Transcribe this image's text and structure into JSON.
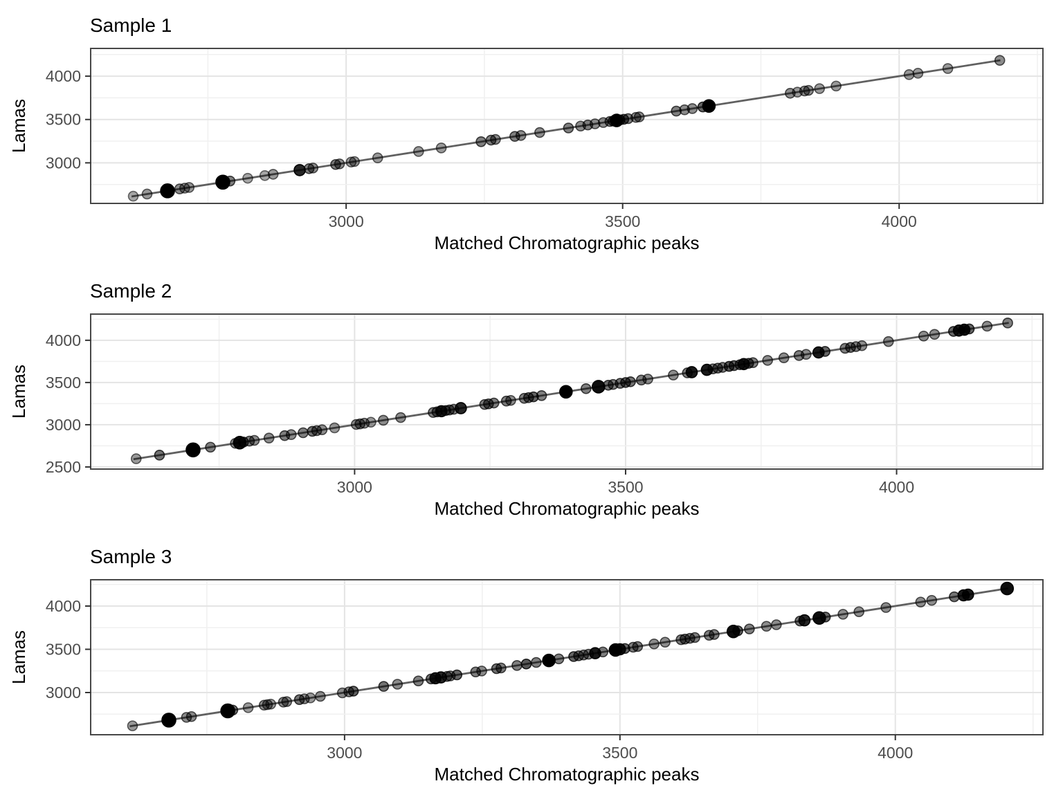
{
  "colors": {
    "background": "#ffffff",
    "panel_background": "#ffffff",
    "panel_border": "#474747",
    "grid_major": "#e4e4e4",
    "grid_minor": "#f0f0f0",
    "tick_mark": "#333333",
    "tick_label": "#4d4d4d",
    "fit_line": "#606060",
    "point": "#000000"
  },
  "chart_data": [
    {
      "type": "scatter",
      "title": "Sample 1",
      "xlabel": "Matched Chromatographic peaks",
      "ylabel": "Lamas",
      "xlim": [
        2538,
        4260
      ],
      "ylim": [
        2532,
        4320
      ],
      "x_ticks": [
        3000,
        3500,
        4000
      ],
      "y_ticks": [
        3000,
        3500,
        4000
      ],
      "minor_step": 250,
      "grid": "major+minor",
      "legend": "none",
      "y_rule": "points lie on identity line y = x",
      "line": {
        "type": "identity",
        "from": 2612,
        "to": 4183
      },
      "points": [
        [
          2615,
          7,
          0.35
        ],
        [
          2640,
          7,
          0.4
        ],
        [
          2677,
          10,
          1
        ],
        [
          2699,
          7,
          0.45
        ],
        [
          2708,
          7,
          0.4
        ],
        [
          2716,
          7,
          0.4
        ],
        [
          2777,
          10,
          1
        ],
        [
          2790,
          7,
          0.5
        ],
        [
          2822,
          7,
          0.35
        ],
        [
          2853,
          7,
          0.35
        ],
        [
          2868,
          7,
          0.4
        ],
        [
          2916,
          8,
          0.85
        ],
        [
          2933,
          7,
          0.5
        ],
        [
          2940,
          7,
          0.45
        ],
        [
          2981,
          7,
          0.5
        ],
        [
          2988,
          7,
          0.45
        ],
        [
          3009,
          7,
          0.4
        ],
        [
          3015,
          7,
          0.4
        ],
        [
          3057,
          7,
          0.4
        ],
        [
          3131,
          7,
          0.4
        ],
        [
          3172,
          7,
          0.4
        ],
        [
          3244,
          7,
          0.5
        ],
        [
          3262,
          7,
          0.5
        ],
        [
          3270,
          7,
          0.45
        ],
        [
          3305,
          7,
          0.5
        ],
        [
          3316,
          7,
          0.45
        ],
        [
          3350,
          7,
          0.45
        ],
        [
          3402,
          7,
          0.5
        ],
        [
          3424,
          7,
          0.45
        ],
        [
          3437,
          7,
          0.5
        ],
        [
          3450,
          7,
          0.45
        ],
        [
          3465,
          7,
          0.45
        ],
        [
          3477,
          7,
          0.5
        ],
        [
          3483,
          7,
          0.6
        ],
        [
          3489,
          9,
          1
        ],
        [
          3495,
          7,
          0.7
        ],
        [
          3502,
          7,
          0.6
        ],
        [
          3510,
          7,
          0.5
        ],
        [
          3524,
          7,
          0.45
        ],
        [
          3530,
          7,
          0.45
        ],
        [
          3597,
          7,
          0.5
        ],
        [
          3612,
          7,
          0.45
        ],
        [
          3626,
          7,
          0.45
        ],
        [
          3645,
          7,
          0.6
        ],
        [
          3656,
          9,
          1
        ],
        [
          3803,
          7,
          0.45
        ],
        [
          3816,
          7,
          0.4
        ],
        [
          3829,
          7,
          0.45
        ],
        [
          3836,
          7,
          0.45
        ],
        [
          3856,
          7,
          0.4
        ],
        [
          3886,
          7,
          0.4
        ],
        [
          4018,
          7,
          0.4
        ],
        [
          4034,
          7,
          0.4
        ],
        [
          4088,
          7,
          0.4
        ],
        [
          4182,
          7,
          0.45
        ]
      ]
    },
    {
      "type": "scatter",
      "title": "Sample 2",
      "xlabel": "Matched Chromatographic peaks",
      "ylabel": "Lamas",
      "xlim": [
        2513,
        4270
      ],
      "ylim": [
        2475,
        4310
      ],
      "x_ticks": [
        3000,
        3500,
        4000
      ],
      "y_ticks": [
        2500,
        3000,
        3500,
        4000
      ],
      "minor_step": 250,
      "grid": "major+minor",
      "legend": "none",
      "y_rule": "points lie on identity line y = x",
      "line": {
        "type": "identity",
        "from": 2592,
        "to": 4207
      },
      "points": [
        [
          2597,
          7,
          0.4
        ],
        [
          2640,
          7,
          0.55
        ],
        [
          2702,
          10,
          1
        ],
        [
          2734,
          7,
          0.5
        ],
        [
          2780,
          7,
          0.45
        ],
        [
          2788,
          9,
          0.95
        ],
        [
          2795,
          7,
          0.6
        ],
        [
          2806,
          7,
          0.5
        ],
        [
          2815,
          7,
          0.45
        ],
        [
          2842,
          7,
          0.45
        ],
        [
          2871,
          7,
          0.5
        ],
        [
          2883,
          7,
          0.45
        ],
        [
          2905,
          7,
          0.5
        ],
        [
          2922,
          7,
          0.55
        ],
        [
          2930,
          7,
          0.5
        ],
        [
          2940,
          7,
          0.45
        ],
        [
          2963,
          7,
          0.4
        ],
        [
          3003,
          7,
          0.45
        ],
        [
          3010,
          7,
          0.5
        ],
        [
          3018,
          7,
          0.45
        ],
        [
          3030,
          7,
          0.4
        ],
        [
          3053,
          7,
          0.45
        ],
        [
          3085,
          7,
          0.45
        ],
        [
          3145,
          7,
          0.5
        ],
        [
          3152,
          7,
          0.55
        ],
        [
          3160,
          8,
          0.9
        ],
        [
          3168,
          7,
          0.6
        ],
        [
          3175,
          7,
          0.55
        ],
        [
          3183,
          7,
          0.5
        ],
        [
          3196,
          8,
          0.85
        ],
        [
          3240,
          7,
          0.5
        ],
        [
          3247,
          7,
          0.55
        ],
        [
          3257,
          7,
          0.5
        ],
        [
          3280,
          7,
          0.5
        ],
        [
          3288,
          7,
          0.45
        ],
        [
          3313,
          7,
          0.5
        ],
        [
          3321,
          7,
          0.55
        ],
        [
          3330,
          7,
          0.6
        ],
        [
          3345,
          7,
          0.5
        ],
        [
          3390,
          9,
          1
        ],
        [
          3427,
          7,
          0.5
        ],
        [
          3450,
          9,
          0.95
        ],
        [
          3468,
          7,
          0.55
        ],
        [
          3477,
          7,
          0.5
        ],
        [
          3490,
          7,
          0.55
        ],
        [
          3500,
          7,
          0.6
        ],
        [
          3509,
          7,
          0.55
        ],
        [
          3529,
          7,
          0.5
        ],
        [
          3541,
          7,
          0.45
        ],
        [
          3588,
          7,
          0.45
        ],
        [
          3614,
          7,
          0.5
        ],
        [
          3622,
          8,
          0.9
        ],
        [
          3650,
          8,
          0.9
        ],
        [
          3661,
          7,
          0.5
        ],
        [
          3670,
          7,
          0.55
        ],
        [
          3679,
          7,
          0.5
        ],
        [
          3691,
          7,
          0.65
        ],
        [
          3700,
          7,
          0.6
        ],
        [
          3711,
          7,
          0.6
        ],
        [
          3718,
          8,
          0.9
        ],
        [
          3727,
          7,
          0.6
        ],
        [
          3735,
          7,
          0.5
        ],
        [
          3762,
          7,
          0.45
        ],
        [
          3792,
          7,
          0.45
        ],
        [
          3820,
          7,
          0.5
        ],
        [
          3833,
          7,
          0.45
        ],
        [
          3856,
          8,
          0.9
        ],
        [
          3868,
          7,
          0.6
        ],
        [
          3905,
          7,
          0.5
        ],
        [
          3915,
          7,
          0.55
        ],
        [
          3925,
          7,
          0.5
        ],
        [
          3936,
          7,
          0.45
        ],
        [
          3985,
          7,
          0.45
        ],
        [
          4050,
          7,
          0.45
        ],
        [
          4070,
          7,
          0.45
        ],
        [
          4105,
          7,
          0.6
        ],
        [
          4115,
          8,
          0.9
        ],
        [
          4125,
          8,
          0.95
        ],
        [
          4134,
          7,
          0.6
        ],
        [
          4167,
          7,
          0.45
        ],
        [
          4205,
          7,
          0.5
        ]
      ]
    },
    {
      "type": "scatter",
      "title": "Sample 3",
      "xlabel": "Matched Chromatographic peaks",
      "ylabel": "Lamas",
      "xlim": [
        2539,
        4268
      ],
      "ylim": [
        2512,
        4304
      ],
      "x_ticks": [
        3000,
        3500,
        4000
      ],
      "y_ticks": [
        3000,
        3500,
        4000
      ],
      "minor_step": 250,
      "grid": "major+minor",
      "legend": "none",
      "y_rule": "points lie on identity line y = x",
      "line": {
        "type": "identity",
        "from": 2610,
        "to": 4205
      },
      "points": [
        [
          2615,
          7,
          0.4
        ],
        [
          2681,
          10,
          1
        ],
        [
          2713,
          7,
          0.45
        ],
        [
          2722,
          7,
          0.45
        ],
        [
          2788,
          10,
          1
        ],
        [
          2797,
          7,
          0.55
        ],
        [
          2825,
          7,
          0.4
        ],
        [
          2854,
          7,
          0.45
        ],
        [
          2860,
          7,
          0.45
        ],
        [
          2866,
          7,
          0.4
        ],
        [
          2889,
          7,
          0.45
        ],
        [
          2895,
          7,
          0.45
        ],
        [
          2918,
          7,
          0.55
        ],
        [
          2927,
          7,
          0.45
        ],
        [
          2938,
          7,
          0.4
        ],
        [
          2956,
          7,
          0.45
        ],
        [
          2996,
          7,
          0.45
        ],
        [
          3008,
          7,
          0.5
        ],
        [
          3016,
          7,
          0.6
        ],
        [
          3071,
          7,
          0.55
        ],
        [
          3096,
          7,
          0.45
        ],
        [
          3134,
          7,
          0.5
        ],
        [
          3157,
          7,
          0.55
        ],
        [
          3165,
          8,
          0.9
        ],
        [
          3175,
          8,
          0.85
        ],
        [
          3186,
          7,
          0.55
        ],
        [
          3192,
          7,
          0.5
        ],
        [
          3204,
          7,
          0.6
        ],
        [
          3238,
          7,
          0.5
        ],
        [
          3249,
          7,
          0.45
        ],
        [
          3276,
          7,
          0.55
        ],
        [
          3284,
          7,
          0.5
        ],
        [
          3313,
          7,
          0.5
        ],
        [
          3330,
          7,
          0.65
        ],
        [
          3348,
          7,
          0.5
        ],
        [
          3371,
          9,
          1
        ],
        [
          3389,
          7,
          0.5
        ],
        [
          3416,
          7,
          0.6
        ],
        [
          3425,
          7,
          0.55
        ],
        [
          3434,
          7,
          0.5
        ],
        [
          3443,
          7,
          0.5
        ],
        [
          3455,
          8,
          0.9
        ],
        [
          3469,
          7,
          0.5
        ],
        [
          3492,
          9,
          1
        ],
        [
          3500,
          8,
          0.9
        ],
        [
          3509,
          7,
          0.6
        ],
        [
          3524,
          7,
          0.5
        ],
        [
          3532,
          7,
          0.5
        ],
        [
          3562,
          7,
          0.45
        ],
        [
          3582,
          7,
          0.45
        ],
        [
          3611,
          7,
          0.5
        ],
        [
          3618,
          7,
          0.55
        ],
        [
          3627,
          7,
          0.5
        ],
        [
          3636,
          7,
          0.5
        ],
        [
          3662,
          7,
          0.5
        ],
        [
          3671,
          7,
          0.5
        ],
        [
          3706,
          9,
          0.95
        ],
        [
          3714,
          7,
          0.6
        ],
        [
          3735,
          7,
          0.5
        ],
        [
          3766,
          7,
          0.45
        ],
        [
          3784,
          7,
          0.45
        ],
        [
          3827,
          7,
          0.55
        ],
        [
          3835,
          8,
          0.85
        ],
        [
          3862,
          9,
          0.95
        ],
        [
          3873,
          7,
          0.6
        ],
        [
          3905,
          7,
          0.45
        ],
        [
          3934,
          7,
          0.45
        ],
        [
          3983,
          7,
          0.45
        ],
        [
          4046,
          7,
          0.45
        ],
        [
          4066,
          7,
          0.45
        ],
        [
          4107,
          7,
          0.55
        ],
        [
          4124,
          8,
          0.9
        ],
        [
          4132,
          8,
          0.9
        ],
        [
          4203,
          9,
          0.95
        ]
      ]
    }
  ]
}
